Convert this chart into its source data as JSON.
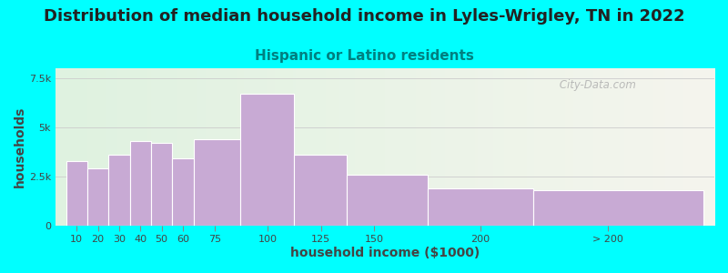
{
  "title": "Distribution of median household income in Lyles-Wrigley, TN in 2022",
  "subtitle": "Hispanic or Latino residents",
  "xlabel": "household income ($1000)",
  "ylabel": "households",
  "background_color": "#00ffff",
  "bar_color": "#c8aad4",
  "bar_edge_color": "#ffffff",
  "categories": [
    "10",
    "20",
    "30",
    "40",
    "50",
    "60",
    "75",
    "100",
    "125",
    "150",
    "200",
    "> 200"
  ],
  "bar_lefts": [
    5,
    15,
    25,
    35,
    45,
    55,
    65,
    87,
    112,
    137,
    175,
    225
  ],
  "bar_widths": [
    10,
    10,
    10,
    10,
    10,
    10,
    22,
    25,
    25,
    38,
    50,
    80
  ],
  "values": [
    3300,
    2900,
    3600,
    4300,
    4200,
    3400,
    4400,
    6700,
    3600,
    2600,
    1900,
    1800
  ],
  "xtick_positions": [
    10,
    20,
    30,
    40,
    50,
    60,
    75,
    100,
    125,
    150,
    200,
    260
  ],
  "ylim": [
    0,
    8000
  ],
  "yticks": [
    0,
    2500,
    5000,
    7500
  ],
  "ytick_labels": [
    "0",
    "2.5k",
    "5k",
    "7.5k"
  ],
  "title_fontsize": 13,
  "subtitle_fontsize": 11,
  "subtitle_color": "#008080",
  "axis_label_fontsize": 10,
  "tick_fontsize": 8,
  "watermark": " City-Data.com",
  "title_color": "#222222"
}
